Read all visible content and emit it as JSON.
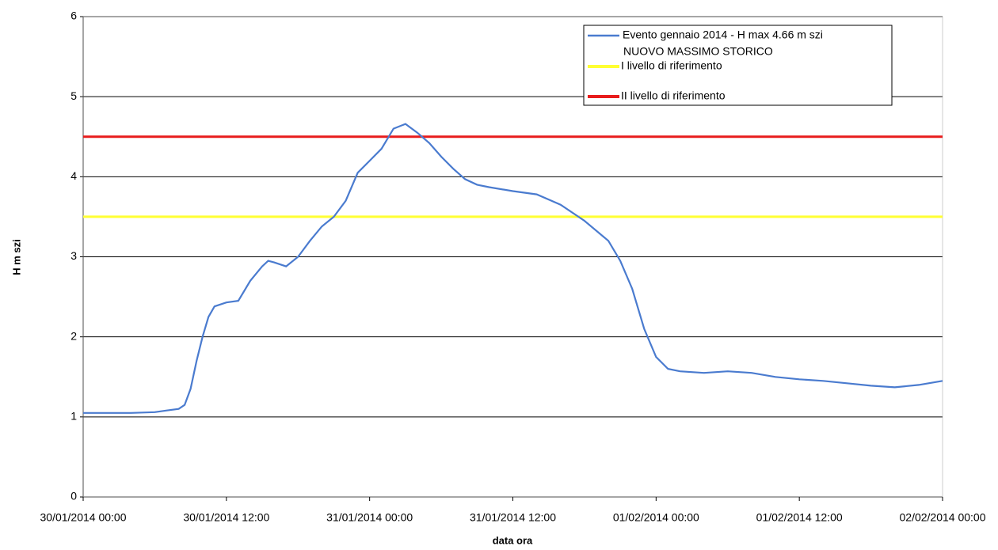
{
  "chart_data": {
    "type": "line",
    "xlabel": "data ora",
    "ylabel": "H m szi",
    "x": [
      "30/01/2014 00:00",
      "30/01/2014 02:00",
      "30/01/2014 04:00",
      "30/01/2014 06:00",
      "30/01/2014 07:00",
      "30/01/2014 08:00",
      "30/01/2014 08:30",
      "30/01/2014 09:00",
      "30/01/2014 09:30",
      "30/01/2014 10:00",
      "30/01/2014 10:30",
      "30/01/2014 11:00",
      "30/01/2014 12:00",
      "30/01/2014 13:00",
      "30/01/2014 14:00",
      "30/01/2014 15:00",
      "30/01/2014 15:30",
      "30/01/2014 16:00",
      "30/01/2014 17:00",
      "30/01/2014 18:00",
      "30/01/2014 19:00",
      "30/01/2014 20:00",
      "30/01/2014 21:00",
      "30/01/2014 22:00",
      "30/01/2014 23:00",
      "31/01/2014 00:00",
      "31/01/2014 01:00",
      "31/01/2014 02:00",
      "31/01/2014 03:00",
      "31/01/2014 04:00",
      "31/01/2014 05:00",
      "31/01/2014 06:00",
      "31/01/2014 07:00",
      "31/01/2014 08:00",
      "31/01/2014 09:00",
      "31/01/2014 10:00",
      "31/01/2014 12:00",
      "31/01/2014 14:00",
      "31/01/2014 16:00",
      "31/01/2014 18:00",
      "31/01/2014 20:00",
      "31/01/2014 21:00",
      "31/01/2014 22:00",
      "31/01/2014 23:00",
      "01/02/2014 00:00",
      "01/02/2014 01:00",
      "01/02/2014 02:00",
      "01/02/2014 04:00",
      "01/02/2014 06:00",
      "01/02/2014 08:00",
      "01/02/2014 10:00",
      "01/02/2014 12:00",
      "01/02/2014 14:00",
      "01/02/2014 16:00",
      "01/02/2014 18:00",
      "01/02/2014 20:00",
      "01/02/2014 22:00",
      "02/02/2014 00:00"
    ],
    "series": [
      {
        "name": [
          "Evento gennaio 2014  -  H max 4.66 m szi",
          "NUOVO MASSIMO STORICO"
        ],
        "color": "#4a7bcf",
        "values": [
          1.05,
          1.05,
          1.05,
          1.06,
          1.08,
          1.1,
          1.15,
          1.35,
          1.7,
          2.0,
          2.25,
          2.38,
          2.43,
          2.45,
          2.7,
          2.88,
          2.95,
          2.93,
          2.88,
          3.0,
          3.2,
          3.38,
          3.5,
          3.7,
          4.05,
          4.2,
          4.35,
          4.6,
          4.66,
          4.55,
          4.42,
          4.25,
          4.1,
          3.97,
          3.9,
          3.87,
          3.82,
          3.78,
          3.65,
          3.45,
          3.2,
          2.95,
          2.6,
          2.1,
          1.75,
          1.6,
          1.57,
          1.55,
          1.57,
          1.55,
          1.5,
          1.47,
          1.45,
          1.42,
          1.39,
          1.37,
          1.4,
          1.45
        ]
      }
    ],
    "reference_lines": [
      {
        "name": "I livello di riferimento",
        "color": "#ffff33",
        "value": 3.5
      },
      {
        "name": "II livello di riferimento",
        "color": "#e81c1c",
        "value": 4.5
      }
    ],
    "xlim": [
      "30/01/2014 00:00",
      "02/02/2014 00:00"
    ],
    "xticks": [
      "30/01/2014 00:00",
      "30/01/2014 12:00",
      "31/01/2014 00:00",
      "31/01/2014 12:00",
      "01/02/2014 00:00",
      "01/02/2014 12:00",
      "02/02/2014 00:00"
    ],
    "ylim": [
      0,
      6
    ],
    "yticks": [
      0,
      1,
      2,
      3,
      4,
      5,
      6
    ],
    "grid": true
  }
}
